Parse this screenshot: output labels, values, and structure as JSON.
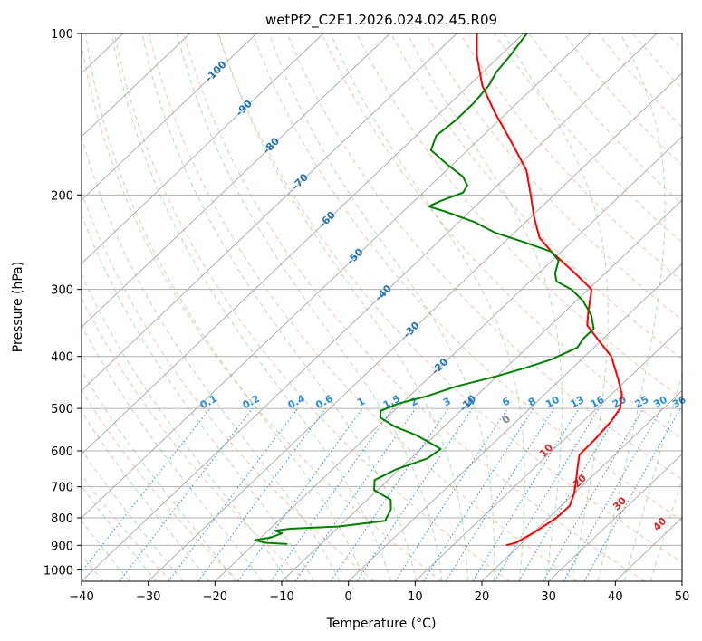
{
  "chart_data": {
    "type": "line",
    "title": "wetPf2_C2E1.2026.024.02.45.R09",
    "xlabel": "Temperature (°C)",
    "ylabel": "Pressure (hPa)",
    "xlim": [
      -40,
      50
    ],
    "ylim": [
      1050,
      100
    ],
    "y_scale": "log",
    "x_ticks": [
      -40,
      -30,
      -20,
      -10,
      0,
      10,
      20,
      30,
      40,
      50
    ],
    "x_tick_labels": [
      "−40",
      "−30",
      "−20",
      "−10",
      "0",
      "10",
      "20",
      "30",
      "40",
      "50"
    ],
    "y_ticks": [
      1000,
      900,
      800,
      700,
      600,
      500,
      400,
      300,
      200,
      100
    ],
    "y_tick_labels": [
      "1000",
      "900",
      "800",
      "700",
      "600",
      "500",
      "400",
      "300",
      "200",
      "100"
    ],
    "grid": true,
    "series": [
      {
        "key": "temperature",
        "color": "#ff0000",
        "points": [
          [
            900,
            18.0
          ],
          [
            890,
            19.0
          ],
          [
            850,
            20.2
          ],
          [
            800,
            21.2
          ],
          [
            760,
            21.3
          ],
          [
            720,
            20.0
          ],
          [
            680,
            18.2
          ],
          [
            640,
            16.2
          ],
          [
            610,
            14.7
          ],
          [
            570,
            14.6
          ],
          [
            530,
            14.2
          ],
          [
            500,
            13.5
          ],
          [
            470,
            11.5
          ],
          [
            440,
            8.5
          ],
          [
            400,
            4.0
          ],
          [
            370,
            -1.0
          ],
          [
            350,
            -4.5
          ],
          [
            330,
            -6.5
          ],
          [
            300,
            -9.5
          ],
          [
            280,
            -14.5
          ],
          [
            255,
            -21.5
          ],
          [
            240,
            -25.5
          ],
          [
            220,
            -29.5
          ],
          [
            200,
            -33.5
          ],
          [
            180,
            -38.0
          ],
          [
            160,
            -44.5
          ],
          [
            140,
            -52.0
          ],
          [
            125,
            -58.0
          ],
          [
            110,
            -63.5
          ],
          [
            100,
            -67.0
          ]
        ]
      },
      {
        "key": "dewpoint",
        "color": "#008000",
        "points": [
          [
            895,
            -15.0
          ],
          [
            890,
            -18.5
          ],
          [
            880,
            -20.5
          ],
          [
            870,
            -18.5
          ],
          [
            855,
            -17.5
          ],
          [
            845,
            -19.0
          ],
          [
            838,
            -17.0
          ],
          [
            830,
            -10.0
          ],
          [
            810,
            -4.0
          ],
          [
            790,
            -4.5
          ],
          [
            770,
            -5.0
          ],
          [
            740,
            -6.5
          ],
          [
            710,
            -10.5
          ],
          [
            680,
            -12.0
          ],
          [
            650,
            -10.5
          ],
          [
            620,
            -7.5
          ],
          [
            595,
            -7.0
          ],
          [
            580,
            -9.5
          ],
          [
            560,
            -13.0
          ],
          [
            540,
            -17.5
          ],
          [
            520,
            -21.0
          ],
          [
            505,
            -22.0
          ],
          [
            490,
            -20.5
          ],
          [
            475,
            -17.5
          ],
          [
            455,
            -14.5
          ],
          [
            435,
            -10.0
          ],
          [
            420,
            -7.0
          ],
          [
            405,
            -4.5
          ],
          [
            385,
            -2.5
          ],
          [
            370,
            -3.0
          ],
          [
            355,
            -3.0
          ],
          [
            335,
            -5.5
          ],
          [
            315,
            -9.0
          ],
          [
            300,
            -12.5
          ],
          [
            290,
            -16.0
          ],
          [
            280,
            -17.5
          ],
          [
            265,
            -19.0
          ],
          [
            255,
            -21.5
          ],
          [
            245,
            -27.0
          ],
          [
            235,
            -33.0
          ],
          [
            225,
            -37.5
          ],
          [
            215,
            -43.5
          ],
          [
            210,
            -47.0
          ],
          [
            205,
            -46.0
          ],
          [
            198,
            -44.0
          ],
          [
            192,
            -44.5
          ],
          [
            185,
            -46.5
          ],
          [
            175,
            -51.0
          ],
          [
            165,
            -55.5
          ],
          [
            155,
            -57.0
          ],
          [
            145,
            -56.5
          ],
          [
            135,
            -56.5
          ],
          [
            125,
            -57.0
          ],
          [
            118,
            -58.0
          ],
          [
            110,
            -58.5
          ],
          [
            100,
            -59.5
          ]
        ]
      }
    ],
    "isotherm_labels": [
      "-100",
      "-90",
      "-80",
      "-70",
      "-60",
      "-50",
      "-40",
      "-30",
      "-20",
      "-10"
    ],
    "mixing_ratio_labels": [
      "0.1",
      "0.2",
      "0.4",
      "0.6",
      "1",
      "1.5",
      "2",
      "3",
      "4",
      "6",
      "8",
      "10",
      "13",
      "16",
      "20",
      "25",
      "30",
      "36"
    ],
    "moist_adiabat_labels": [
      "0",
      "10",
      "20",
      "30",
      "40"
    ]
  }
}
